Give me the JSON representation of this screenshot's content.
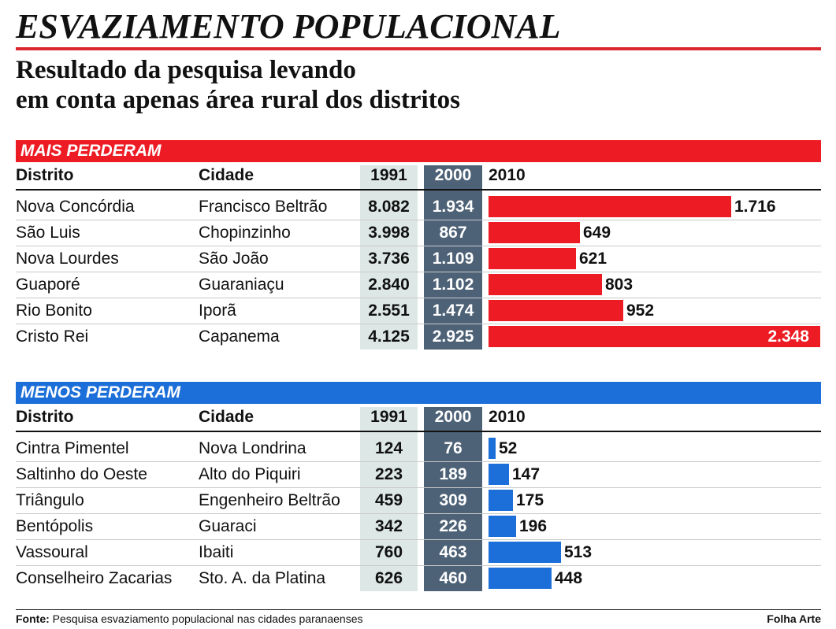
{
  "title": "ESVAZIAMENTO POPULACIONAL",
  "subtitle_line1": "Resultado da pesquisa levando",
  "subtitle_line2": "em conta apenas área rural dos distritos",
  "headers": {
    "distrito": "Distrito",
    "cidade": "Cidade",
    "y1991": "1991",
    "y2000": "2000",
    "y2010": "2010"
  },
  "colors": {
    "red": "#ed1c24",
    "blue": "#1c6fd8",
    "col1991": "#dde8e6",
    "col2000": "#4e6277"
  },
  "chart_data": [
    {
      "type": "bar",
      "title": "MAIS PERDERAM",
      "rows": [
        {
          "distrito": "Nova Concórdia",
          "cidade": "Francisco Beltrão",
          "v1991": "8.082",
          "v2000": "1.934",
          "v2010_label": "1.716",
          "v2010": 1716
        },
        {
          "distrito": "São Luis",
          "cidade": "Chopinzinho",
          "v1991": "3.998",
          "v2000": "867",
          "v2010_label": "649",
          "v2010": 649
        },
        {
          "distrito": "Nova Lourdes",
          "cidade": "São João",
          "v1991": "3.736",
          "v2000": "1.109",
          "v2010_label": "621",
          "v2010": 621
        },
        {
          "distrito": "Guaporé",
          "cidade": "Guaraniaçu",
          "v1991": "2.840",
          "v2000": "1.102",
          "v2010_label": "803",
          "v2010": 803
        },
        {
          "distrito": "Rio Bonito",
          "cidade": "Iporã",
          "v1991": "2.551",
          "v2000": "1.474",
          "v2010_label": "952",
          "v2010": 952
        },
        {
          "distrito": "Cristo Rei",
          "cidade": "Capanema",
          "v1991": "4.125",
          "v2000": "2.925",
          "v2010_label": "2.348",
          "v2010": 2348
        }
      ]
    },
    {
      "type": "bar",
      "title": "MENOS PERDERAM",
      "rows": [
        {
          "distrito": "Cintra Pimentel",
          "cidade": "Nova Londrina",
          "v1991": "124",
          "v2000": "76",
          "v2010_label": "52",
          "v2010": 52
        },
        {
          "distrito": "Saltinho do Oeste",
          "cidade": "Alto do Piquiri",
          "v1991": "223",
          "v2000": "189",
          "v2010_label": "147",
          "v2010": 147
        },
        {
          "distrito": "Triângulo",
          "cidade": "Engenheiro Beltrão",
          "v1991": "459",
          "v2000": "309",
          "v2010_label": "175",
          "v2010": 175
        },
        {
          "distrito": "Bentópolis",
          "cidade": "Guaraci",
          "v1991": "342",
          "v2000": "226",
          "v2010_label": "196",
          "v2010": 196
        },
        {
          "distrito": "Vassoural",
          "cidade": "Ibaiti",
          "v1991": "760",
          "v2000": "463",
          "v2010_label": "513",
          "v2010": 513
        },
        {
          "distrito": "Conselheiro Zacarias",
          "cidade": "Sto. A. da Platina",
          "v1991": "626",
          "v2000": "460",
          "v2010_label": "448",
          "v2010": 448
        }
      ]
    }
  ],
  "footer": {
    "source_label": "Fonte:",
    "source_text": " Pesquisa esvaziamento populacional nas cidades paranaenses",
    "credit": "Folha Arte"
  }
}
